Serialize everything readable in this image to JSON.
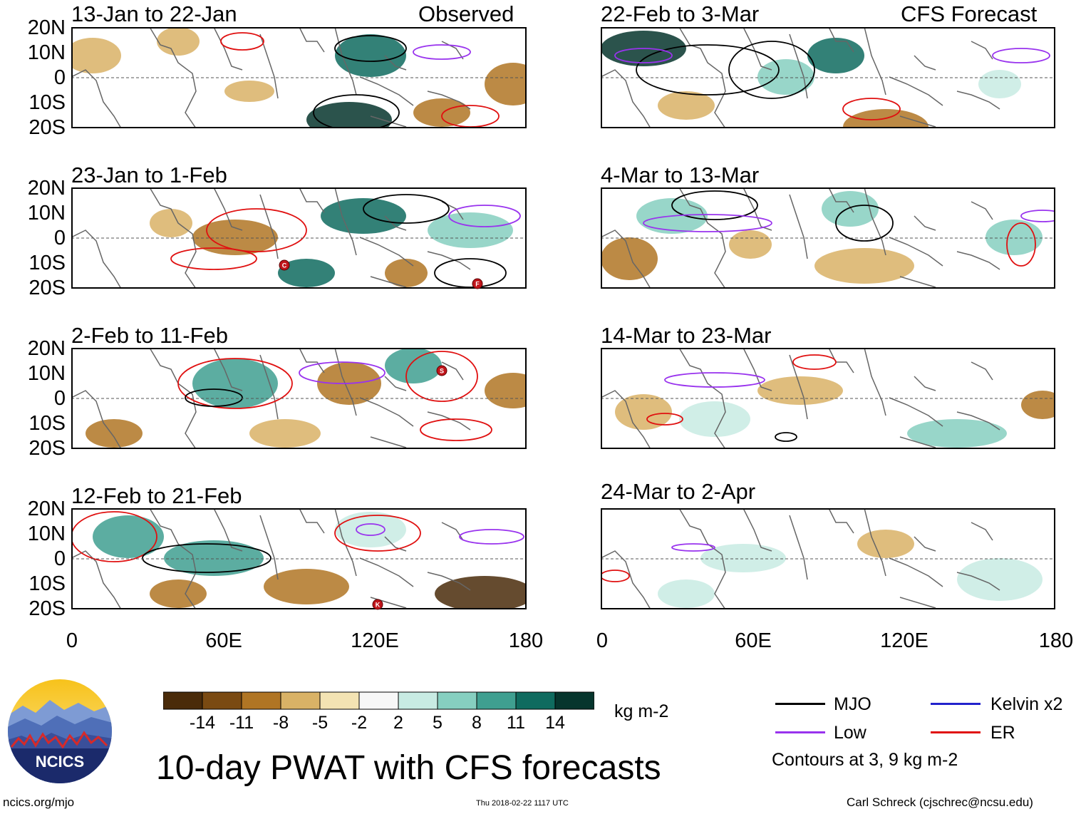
{
  "header": {
    "left_label": "Observed",
    "right_label": "CFS Forecast"
  },
  "panels": [
    {
      "title": "13-Jan to 22-Jan",
      "kind": "observed"
    },
    {
      "title": "23-Jan to 1-Feb",
      "kind": "observed"
    },
    {
      "title": "2-Feb to 11-Feb",
      "kind": "observed"
    },
    {
      "title": "12-Feb to 21-Feb",
      "kind": "observed"
    },
    {
      "title": "22-Feb to 3-Mar",
      "kind": "forecast"
    },
    {
      "title": "4-Mar to 13-Mar",
      "kind": "forecast"
    },
    {
      "title": "14-Mar to 23-Mar",
      "kind": "forecast"
    },
    {
      "title": "24-Mar to 2-Apr",
      "kind": "forecast"
    }
  ],
  "lat_labels": [
    "20N",
    "10N",
    "0",
    "10S",
    "20S"
  ],
  "lon_labels": [
    "0",
    "60E",
    "120E",
    "180"
  ],
  "storm_markers": [
    {
      "panel": 1,
      "letter": "C"
    },
    {
      "panel": 1,
      "letter": "F"
    },
    {
      "panel": 2,
      "letter": "S"
    },
    {
      "panel": 3,
      "letter": "K"
    }
  ],
  "colorbar": {
    "colors": [
      "#4a2b0a",
      "#7a4a12",
      "#b07524",
      "#d9b266",
      "#f3e3b3",
      "#f7f7f7",
      "#c8ebe3",
      "#86cfc0",
      "#3f9f90",
      "#0f6b5f",
      "#06352d"
    ],
    "tick_labels": [
      "-14",
      "-11",
      "-8",
      "-5",
      "-2",
      "2",
      "5",
      "8",
      "11",
      "14"
    ],
    "units": "kg m-2"
  },
  "legend": {
    "items": [
      {
        "label": "MJO",
        "color": "#000000"
      },
      {
        "label": "Kelvin x2",
        "color": "#2222cc"
      },
      {
        "label": "Low",
        "color": "#9933ee"
      },
      {
        "label": "ER",
        "color": "#e01010"
      }
    ],
    "note": "Contours at 3, 9 kg m-2"
  },
  "footer": {
    "title": "10-day PWAT with CFS forecasts",
    "logo_text": "NCICS",
    "url": "ncics.org/mjo",
    "timestamp": "Thu 2018-02-22 1117 UTC",
    "credit": "Carl Schreck (cjschrec@ncsu.edu)"
  }
}
